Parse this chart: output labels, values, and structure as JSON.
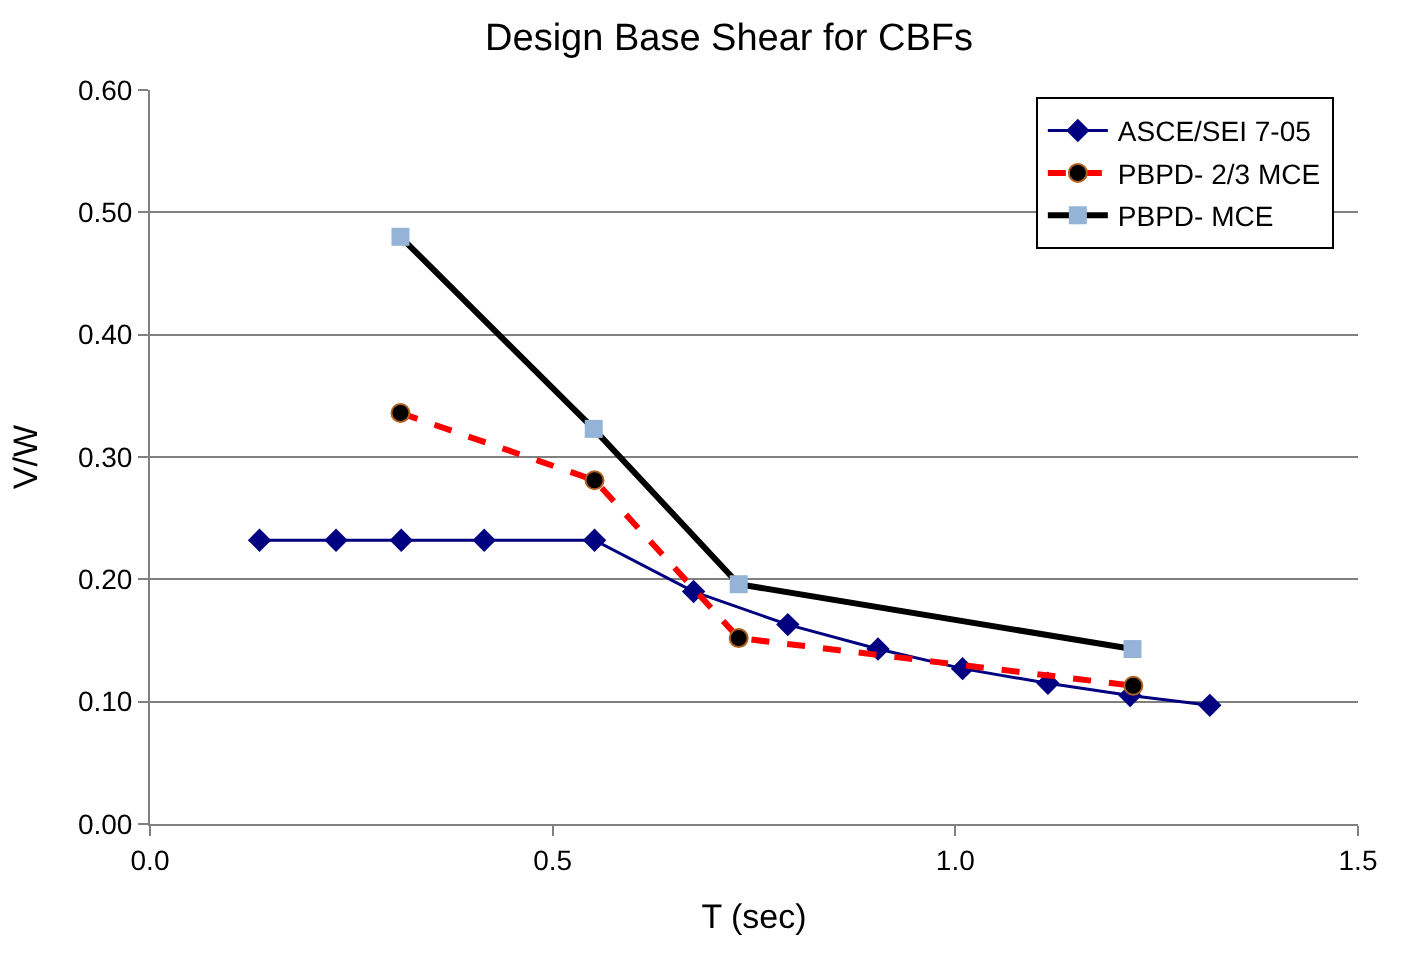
{
  "chart_data": {
    "type": "line",
    "title": "Design Base Shear for CBFs",
    "xlabel": "T (sec)",
    "ylabel": "V/W",
    "xlim": [
      0,
      1.5
    ],
    "xticks": [
      {
        "value": 0,
        "label": "0.0"
      },
      {
        "value": 0.5,
        "label": "0.5"
      },
      {
        "value": 1,
        "label": "1.0"
      },
      {
        "value": 1.5,
        "label": "1.5"
      }
    ],
    "ylim": [
      0,
      0.6
    ],
    "yticks": [
      {
        "value": 0,
        "label": "0.00"
      },
      {
        "value": 0.1,
        "label": "0.10"
      },
      {
        "value": 0.2,
        "label": "0.20"
      },
      {
        "value": 0.3,
        "label": "0.30"
      },
      {
        "value": 0.4,
        "label": "0.40"
      },
      {
        "value": 0.5,
        "label": "0.50"
      },
      {
        "value": 0.6,
        "label": "0.60"
      }
    ],
    "grid": "y",
    "legend": "top right",
    "series": [
      {
        "name": "ASCE/SEI 7-05",
        "color": "#000080",
        "marker": "diamond",
        "line_style": "solid",
        "x": [
          0.136,
          0.231,
          0.312,
          0.415,
          0.552,
          0.675,
          0.792,
          0.904,
          1.009,
          1.115,
          1.217,
          1.316
        ],
        "values": [
          0.232,
          0.232,
          0.232,
          0.232,
          0.232,
          0.19,
          0.163,
          0.143,
          0.127,
          0.115,
          0.105,
          0.097
        ]
      },
      {
        "name": "PBPD- 2/3 MCE",
        "color": "#ff0000",
        "marker": "circle",
        "line_style": "dashed",
        "x": [
          0.311,
          0.552,
          0.731,
          1.221
        ],
        "values": [
          0.336,
          0.281,
          0.152,
          0.113
        ]
      },
      {
        "name": "PBPD- MCE",
        "color": "#000000",
        "marker": "square",
        "line_style": "solid",
        "x": [
          0.311,
          0.551,
          0.731,
          1.22
        ],
        "values": [
          0.48,
          0.323,
          0.196,
          0.143
        ]
      }
    ]
  }
}
